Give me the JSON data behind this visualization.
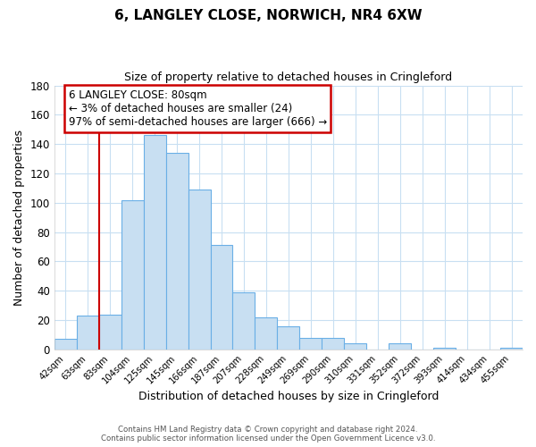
{
  "title": "6, LANGLEY CLOSE, NORWICH, NR4 6XW",
  "subtitle": "Size of property relative to detached houses in Cringleford",
  "xlabel": "Distribution of detached houses by size in Cringleford",
  "ylabel": "Number of detached properties",
  "bar_labels": [
    "42sqm",
    "63sqm",
    "83sqm",
    "104sqm",
    "125sqm",
    "145sqm",
    "166sqm",
    "187sqm",
    "207sqm",
    "228sqm",
    "249sqm",
    "269sqm",
    "290sqm",
    "310sqm",
    "331sqm",
    "352sqm",
    "372sqm",
    "393sqm",
    "414sqm",
    "434sqm",
    "455sqm"
  ],
  "bar_values": [
    7,
    23,
    24,
    102,
    146,
    134,
    109,
    71,
    39,
    22,
    16,
    8,
    8,
    4,
    0,
    4,
    0,
    1,
    0,
    0,
    1
  ],
  "bar_color": "#c8dff2",
  "bar_edge_color": "#6aafe6",
  "red_line_color": "#cc0000",
  "annotation_title": "6 LANGLEY CLOSE: 80sqm",
  "annotation_line1": "← 3% of detached houses are smaller (24)",
  "annotation_line2": "97% of semi-detached houses are larger (666) →",
  "annotation_box_color": "#ffffff",
  "annotation_box_edge_color": "#cc0000",
  "ylim": [
    0,
    180
  ],
  "yticks": [
    0,
    20,
    40,
    60,
    80,
    100,
    120,
    140,
    160,
    180
  ],
  "footer_line1": "Contains HM Land Registry data © Crown copyright and database right 2024.",
  "footer_line2": "Contains public sector information licensed under the Open Government Licence v3.0.",
  "background_color": "#ffffff",
  "grid_color": "#c8dff2"
}
